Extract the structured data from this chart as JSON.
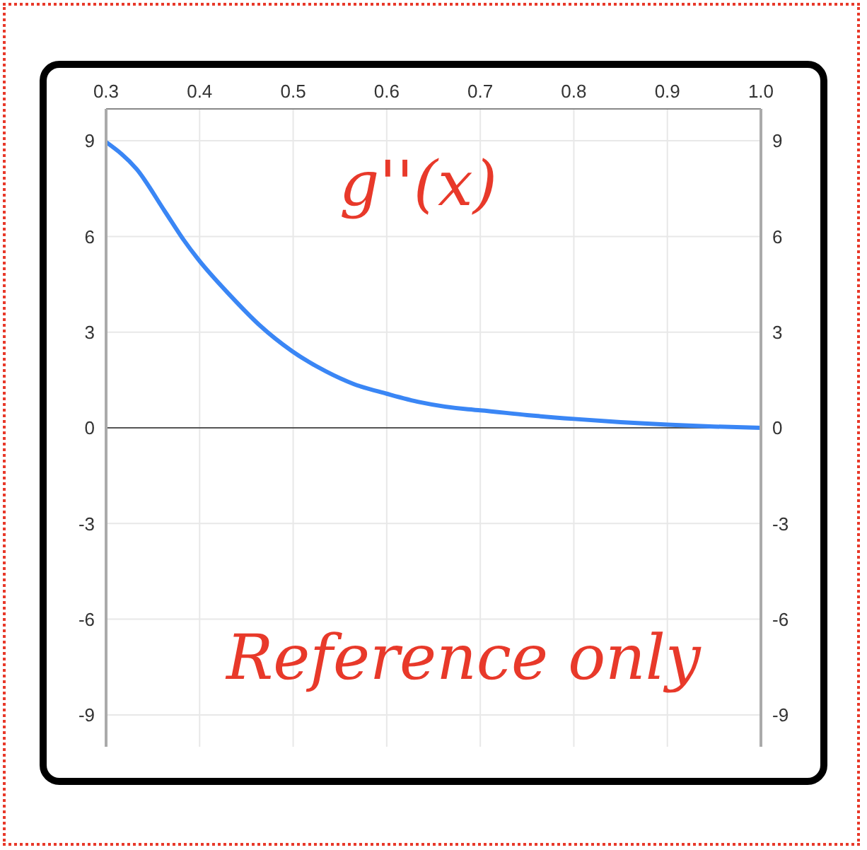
{
  "chart_data": {
    "type": "line",
    "annotations": [
      "g''(x)",
      "Reference only"
    ],
    "x": [
      0.3,
      0.333,
      0.363,
      0.383,
      0.398,
      0.434,
      0.464,
      0.499,
      0.535,
      0.565,
      0.6,
      0.636,
      0.687,
      0.7,
      0.75,
      0.8,
      0.85,
      0.9,
      0.95,
      1.0
    ],
    "series": [
      {
        "color": "#3a86f5",
        "values": [
          8.96,
          8.1,
          6.78,
          5.89,
          5.3,
          4.11,
          3.22,
          2.4,
          1.77,
          1.37,
          1.07,
          0.8,
          0.58,
          0.55,
          0.4,
          0.28,
          0.18,
          0.1,
          0.04,
          0
        ]
      }
    ],
    "xlim": [
      0.3,
      1.0
    ],
    "xticks": [
      {
        "value": 0.3,
        "label": "0.3"
      },
      {
        "value": 0.4,
        "label": "0.4"
      },
      {
        "value": 0.5,
        "label": "0.5"
      },
      {
        "value": 0.6,
        "label": "0.6"
      },
      {
        "value": 0.7,
        "label": "0.7"
      },
      {
        "value": 0.8,
        "label": "0.8"
      },
      {
        "value": 0.9,
        "label": "0.9"
      },
      {
        "value": 1.0,
        "label": "1.0"
      }
    ],
    "ylim": [
      -10,
      10
    ],
    "yticks": [
      -9,
      -6,
      -3,
      0,
      3,
      6,
      9
    ],
    "y2lim": [
      -10,
      10
    ],
    "y2ticks": [
      -9,
      -6,
      -3,
      0,
      3,
      6,
      9
    ],
    "ref_lines": [
      {
        "axis": "y",
        "value": 0,
        "color": "#555555"
      }
    ],
    "grid": true,
    "marker": "none",
    "line_style": "solid"
  }
}
